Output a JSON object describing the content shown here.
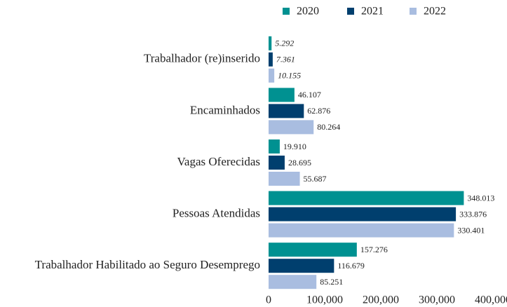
{
  "chart_data": {
    "type": "bar",
    "orientation": "horizontal",
    "categories": [
      "Trabalhador (re)inserido",
      "Encaminhados",
      "Vagas Oferecidas",
      "Pessoas Atendidas",
      "Trabalhador Habilitado ao Seguro Desemprego"
    ],
    "series": [
      {
        "name": "2020",
        "color": "#009191",
        "values": [
          5292,
          46107,
          19910,
          348013,
          157276
        ],
        "value_labels": [
          "5.292",
          "46.107",
          "19.910",
          "348.013",
          "157.276"
        ]
      },
      {
        "name": "2021",
        "color": "#003f6e",
        "values": [
          7361,
          62876,
          28695,
          333876,
          116679
        ],
        "value_labels": [
          "7.361",
          "62.876",
          "28.695",
          "333.876",
          "116.679"
        ]
      },
      {
        "name": "2022",
        "color": "#a9bde0",
        "values": [
          10155,
          80264,
          55687,
          330401,
          85251
        ],
        "value_labels": [
          "10.155",
          "80.264",
          "55.687",
          "330.401",
          "85.251"
        ]
      }
    ],
    "xlim": [
      0,
      400000
    ],
    "xticks": [
      0,
      {
        "value": 100000,
        "label": "100,000"
      },
      {
        "value": 200000,
        "label": "200,000"
      },
      {
        "value": 300000,
        "label": "300,000"
      },
      {
        "value": 400000,
        "label": "400,000"
      }
    ],
    "legend": "top"
  }
}
